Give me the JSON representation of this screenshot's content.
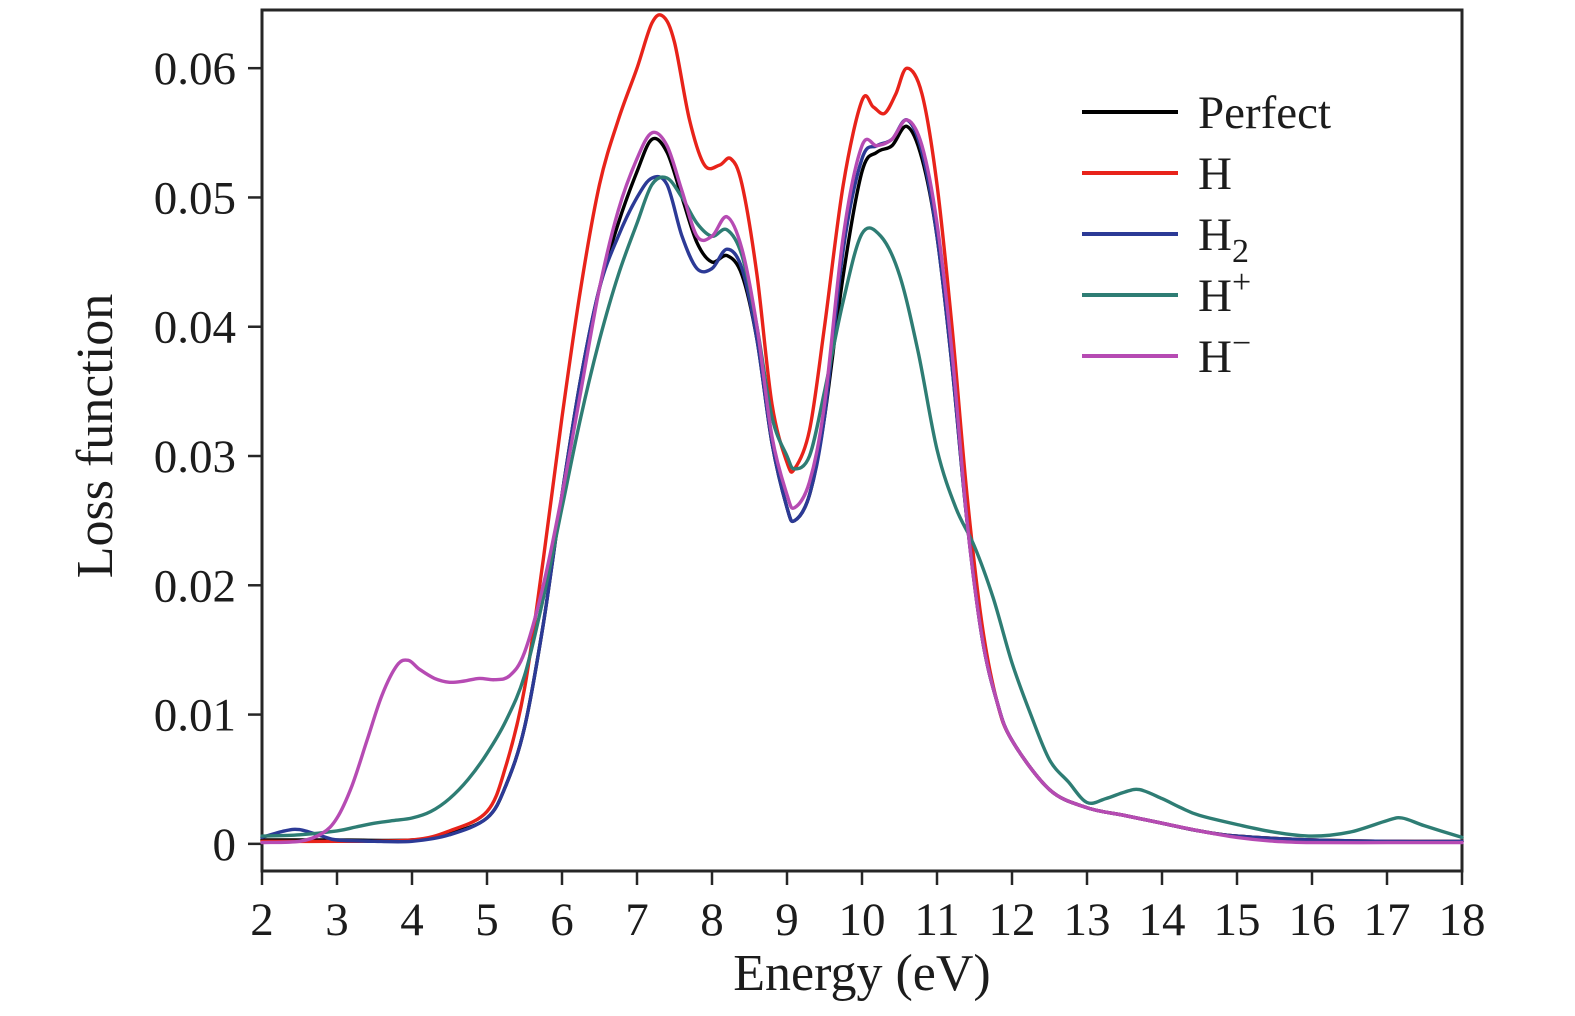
{
  "chart_data": {
    "type": "line",
    "title": "",
    "xlabel": "Energy (eV)",
    "ylabel": "Loss function",
    "xlim": [
      2,
      18
    ],
    "ylim": [
      -0.0021,
      0.0645
    ],
    "grid": false,
    "legend_position": "top-right",
    "frame_color": "#262626",
    "x_ticks": [
      2,
      3,
      4,
      5,
      6,
      7,
      8,
      9,
      10,
      11,
      12,
      13,
      14,
      15,
      16,
      17,
      18
    ],
    "y_ticks": [
      0,
      0.01,
      0.02,
      0.03,
      0.04,
      0.05,
      0.06
    ],
    "y_tick_labels": [
      "0",
      "0.01",
      "0.02",
      "0.03",
      "0.04",
      "0.05",
      "0.06"
    ],
    "series": [
      {
        "id": "perfect",
        "label": "Perfect",
        "label_sub": "",
        "label_sup": "",
        "color": "#000000",
        "x": [
          2,
          3,
          4,
          4.5,
          5,
          5.25,
          5.5,
          5.75,
          6,
          6.25,
          6.5,
          6.75,
          7,
          7.2,
          7.4,
          7.6,
          7.8,
          8,
          8.2,
          8.4,
          8.6,
          8.8,
          9,
          9.1,
          9.3,
          9.5,
          9.75,
          10,
          10.2,
          10.4,
          10.6,
          10.8,
          11,
          11.2,
          11.4,
          11.6,
          11.8,
          12,
          12.5,
          13,
          13.5,
          14,
          14.5,
          15,
          16,
          17,
          18
        ],
        "y": [
          0.0003,
          0.0003,
          0.0003,
          0.0008,
          0.002,
          0.0045,
          0.009,
          0.017,
          0.027,
          0.036,
          0.043,
          0.048,
          0.052,
          0.0545,
          0.0535,
          0.05,
          0.0465,
          0.045,
          0.0455,
          0.044,
          0.039,
          0.031,
          0.026,
          0.025,
          0.027,
          0.033,
          0.044,
          0.052,
          0.0535,
          0.054,
          0.0555,
          0.053,
          0.047,
          0.037,
          0.025,
          0.016,
          0.011,
          0.008,
          0.0042,
          0.0028,
          0.0022,
          0.0016,
          0.001,
          0.0006,
          0.0003,
          0.0002,
          0.0002
        ]
      },
      {
        "id": "h",
        "label": "H",
        "label_sub": "",
        "label_sup": "",
        "color": "#e8231a",
        "x": [
          2,
          3,
          4,
          4.5,
          5,
          5.25,
          5.5,
          5.75,
          6,
          6.25,
          6.5,
          6.75,
          7,
          7.2,
          7.35,
          7.5,
          7.7,
          7.9,
          8.1,
          8.25,
          8.4,
          8.6,
          8.8,
          9,
          9.1,
          9.3,
          9.5,
          9.75,
          10,
          10.15,
          10.3,
          10.45,
          10.6,
          10.8,
          11,
          11.2,
          11.4,
          11.6,
          11.8,
          12,
          12.5,
          13,
          13.5,
          14,
          14.5,
          15,
          16,
          17,
          18
        ],
        "y": [
          0.0002,
          0.0002,
          0.0003,
          0.001,
          0.0025,
          0.006,
          0.012,
          0.022,
          0.033,
          0.043,
          0.051,
          0.056,
          0.06,
          0.0635,
          0.064,
          0.062,
          0.056,
          0.0525,
          0.0525,
          0.053,
          0.051,
          0.044,
          0.034,
          0.0295,
          0.029,
          0.032,
          0.04,
          0.051,
          0.0575,
          0.057,
          0.0565,
          0.058,
          0.06,
          0.058,
          0.051,
          0.04,
          0.027,
          0.017,
          0.011,
          0.008,
          0.0042,
          0.0028,
          0.0022,
          0.0016,
          0.001,
          0.0006,
          0.0003,
          0.0002,
          0.0002
        ]
      },
      {
        "id": "h2",
        "label": "H",
        "label_sub": "2",
        "label_sup": "",
        "color": "#2c3a96",
        "x": [
          2,
          2.3,
          2.5,
          2.8,
          3,
          3.5,
          4,
          4.5,
          5,
          5.25,
          5.5,
          5.75,
          6,
          6.25,
          6.5,
          6.75,
          7,
          7.2,
          7.4,
          7.6,
          7.8,
          8,
          8.2,
          8.4,
          8.6,
          8.8,
          9,
          9.1,
          9.3,
          9.5,
          9.75,
          10,
          10.2,
          10.4,
          10.6,
          10.8,
          11,
          11.2,
          11.4,
          11.6,
          11.8,
          12,
          12.5,
          13,
          13.5,
          14,
          14.5,
          15,
          16,
          17,
          18
        ],
        "y": [
          0.0005,
          0.001,
          0.0011,
          0.0006,
          0.0003,
          0.0002,
          0.0002,
          0.0007,
          0.002,
          0.0045,
          0.009,
          0.017,
          0.027,
          0.036,
          0.043,
          0.047,
          0.05,
          0.0515,
          0.051,
          0.047,
          0.0445,
          0.0445,
          0.046,
          0.0445,
          0.039,
          0.031,
          0.026,
          0.025,
          0.027,
          0.033,
          0.046,
          0.053,
          0.054,
          0.0545,
          0.056,
          0.0535,
          0.047,
          0.037,
          0.025,
          0.016,
          0.011,
          0.008,
          0.0042,
          0.0028,
          0.0022,
          0.0016,
          0.001,
          0.0006,
          0.0003,
          0.0002,
          0.0002
        ]
      },
      {
        "id": "h-plus",
        "label": "H",
        "label_sub": "",
        "label_sup": "+",
        "color": "#2e7d74",
        "x": [
          2,
          2.5,
          3,
          3.25,
          3.5,
          3.75,
          4,
          4.25,
          4.5,
          4.75,
          5,
          5.25,
          5.5,
          5.75,
          6,
          6.25,
          6.5,
          6.75,
          7,
          7.2,
          7.4,
          7.6,
          7.8,
          8,
          8.2,
          8.4,
          8.6,
          8.8,
          9,
          9.1,
          9.3,
          9.5,
          9.75,
          10,
          10.25,
          10.5,
          10.75,
          11,
          11.25,
          11.5,
          11.75,
          12,
          12.25,
          12.5,
          12.75,
          13,
          13.25,
          13.5,
          13.7,
          14,
          14.25,
          14.5,
          15,
          15.5,
          16,
          16.5,
          17,
          17.2,
          17.5,
          18
        ],
        "y": [
          0.0006,
          0.0007,
          0.001,
          0.0013,
          0.0016,
          0.0018,
          0.002,
          0.0025,
          0.0035,
          0.005,
          0.007,
          0.0095,
          0.013,
          0.019,
          0.026,
          0.033,
          0.039,
          0.044,
          0.048,
          0.051,
          0.0515,
          0.05,
          0.048,
          0.047,
          0.0475,
          0.0455,
          0.04,
          0.033,
          0.03,
          0.029,
          0.03,
          0.035,
          0.042,
          0.0472,
          0.047,
          0.044,
          0.038,
          0.0305,
          0.026,
          0.023,
          0.019,
          0.014,
          0.01,
          0.0065,
          0.0048,
          0.0032,
          0.0035,
          0.004,
          0.0042,
          0.0035,
          0.0028,
          0.0022,
          0.0015,
          0.0009,
          0.0006,
          0.0009,
          0.0018,
          0.002,
          0.0014,
          0.0005
        ]
      },
      {
        "id": "h-minus",
        "label": "H",
        "label_sub": "",
        "label_sup": "−",
        "color": "#b64bb3",
        "x": [
          2,
          2.5,
          2.8,
          3,
          3.2,
          3.4,
          3.6,
          3.8,
          3.95,
          4.1,
          4.3,
          4.5,
          4.7,
          4.9,
          5.1,
          5.3,
          5.5,
          5.75,
          6,
          6.25,
          6.5,
          6.75,
          7,
          7.2,
          7.4,
          7.6,
          7.8,
          8,
          8.2,
          8.4,
          8.6,
          8.8,
          9,
          9.1,
          9.3,
          9.5,
          9.75,
          10,
          10.2,
          10.4,
          10.6,
          10.8,
          11,
          11.2,
          11.4,
          11.6,
          11.8,
          12,
          12.5,
          13,
          13.5,
          14,
          14.5,
          15,
          15.5,
          16,
          17,
          18
        ],
        "y": [
          0.0001,
          0.0002,
          0.0008,
          0.002,
          0.0045,
          0.008,
          0.0115,
          0.0138,
          0.0142,
          0.0135,
          0.0128,
          0.0125,
          0.0126,
          0.0128,
          0.0127,
          0.013,
          0.0148,
          0.02,
          0.027,
          0.035,
          0.043,
          0.049,
          0.053,
          0.055,
          0.054,
          0.0505,
          0.047,
          0.047,
          0.0485,
          0.046,
          0.04,
          0.0315,
          0.027,
          0.026,
          0.028,
          0.034,
          0.047,
          0.054,
          0.054,
          0.0545,
          0.056,
          0.054,
          0.048,
          0.038,
          0.025,
          0.016,
          0.011,
          0.008,
          0.0042,
          0.0028,
          0.0022,
          0.0016,
          0.001,
          0.0005,
          0.0002,
          0.0001,
          0.0001,
          0.0001
        ]
      }
    ]
  }
}
